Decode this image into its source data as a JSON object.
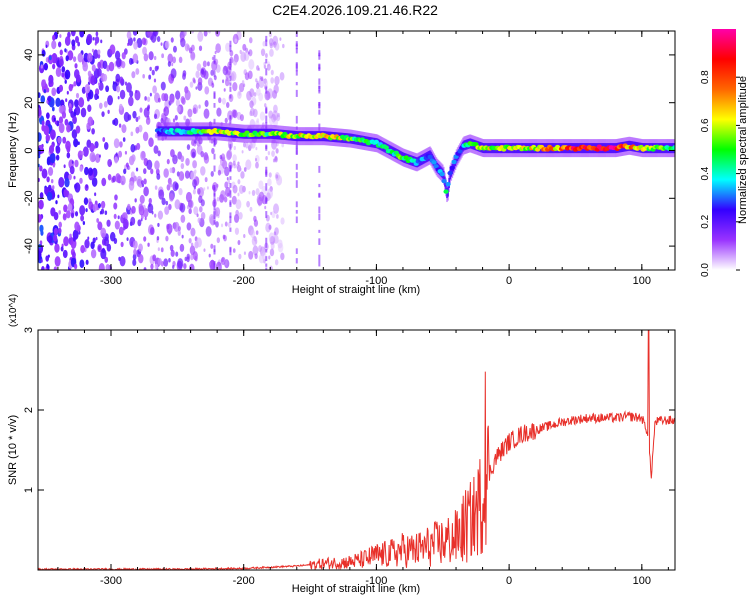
{
  "title": "C2E4.2026.109.21.46.R22",
  "chart_data": [
    {
      "type": "heatmap",
      "title": "C2E4.2026.109.21.46.R22",
      "xlabel": "Height of straight line (km)",
      "ylabel": "Frequency (Hz)",
      "xlim": [
        -355,
        125
      ],
      "ylim": [
        -50,
        50
      ],
      "xticks": [
        -300,
        -200,
        -100,
        0,
        100
      ],
      "yticks": [
        -40,
        -20,
        0,
        20,
        40
      ],
      "colorbar": {
        "label": "Normalized spectral amplitude",
        "range": [
          0,
          1
        ],
        "ticks": [
          0.0,
          0.2,
          0.4,
          0.6,
          0.8
        ],
        "colors": [
          "#ffffff",
          "#9933ff",
          "#3300ff",
          "#00ffff",
          "#00ff00",
          "#ffff00",
          "#ff6600",
          "#ff0000",
          "#ff00aa"
        ]
      },
      "ridge": {
        "name": "dominant frequency",
        "x": [
          -265,
          -240,
          -220,
          -200,
          -180,
          -160,
          -140,
          -120,
          -100,
          -90,
          -80,
          -70,
          -60,
          -55,
          -50,
          -47,
          -45,
          -40,
          -35,
          -30,
          -20,
          -10,
          0,
          20,
          40,
          60,
          80,
          90,
          100,
          110,
          125
        ],
        "freq": [
          8,
          8,
          8,
          7,
          7,
          6,
          6,
          5,
          3,
          0,
          -3,
          -5,
          -2,
          -7,
          -10,
          -19,
          -10,
          -3,
          2,
          3,
          1,
          1,
          1,
          1,
          1,
          1,
          1,
          2,
          1,
          1,
          1
        ],
        "amplitude": [
          0.3,
          0.4,
          0.6,
          0.5,
          0.5,
          0.6,
          0.7,
          0.5,
          0.4,
          0.4,
          0.5,
          0.35,
          0.3,
          0.3,
          0.3,
          0.5,
          0.3,
          0.3,
          0.3,
          0.5,
          0.6,
          0.55,
          0.6,
          0.6,
          0.75,
          0.9,
          0.9,
          0.7,
          0.6,
          0.5,
          0.5
        ]
      },
      "noise_region": {
        "x": [
          -355,
          -210
        ],
        "amplitude": [
          0.0,
          0.3
        ]
      }
    },
    {
      "type": "line",
      "xlabel": "Height of straight line (km)",
      "ylabel": "SNR (10 * v/v)",
      "multiplier": "(x10^4)",
      "xlim": [
        -355,
        125
      ],
      "ylim": [
        0,
        3
      ],
      "xticks": [
        -300,
        -200,
        -100,
        0,
        100
      ],
      "yticks": [
        1,
        2,
        3
      ],
      "color": "#e8302a",
      "series": [
        {
          "x": [
            -355,
            -300,
            -250,
            -200,
            -160,
            -140,
            -120,
            -110,
            -100,
            -90,
            -80,
            -70,
            -60,
            -50,
            -40,
            -30,
            -25,
            -20,
            -15,
            -10,
            -5,
            0,
            5,
            10,
            20,
            30,
            40,
            50,
            60,
            70,
            80,
            90,
            100,
            105,
            107,
            110,
            115,
            125
          ],
          "y": [
            0.01,
            0.01,
            0.01,
            0.02,
            0.05,
            0.08,
            0.1,
            0.13,
            0.18,
            0.2,
            0.25,
            0.25,
            0.3,
            0.35,
            0.4,
            0.6,
            0.7,
            0.9,
            1.2,
            1.4,
            1.5,
            1.6,
            1.65,
            1.7,
            1.75,
            1.8,
            1.85,
            1.88,
            1.9,
            1.9,
            1.9,
            1.92,
            1.9,
            1.7,
            1.15,
            1.85,
            1.87,
            1.87
          ]
        }
      ],
      "annotations": [
        {
          "x": -18,
          "y": 2.48
        },
        {
          "x": 105,
          "y": 3.0
        }
      ]
    }
  ]
}
